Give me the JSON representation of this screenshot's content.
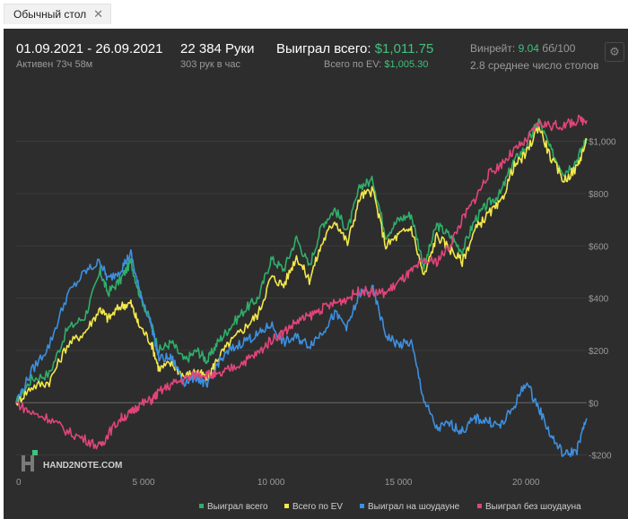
{
  "tab": {
    "label": "Обычный стол",
    "close": "✕"
  },
  "header": {
    "date_range": "01.09.2021 - 26.09.2021",
    "active": "Активен 73ч 58м",
    "hands": "22 384 Руки",
    "hands_per_hour": "303 рук в час",
    "won_label": "Выиграл всего:",
    "won_value": "$1,011.75",
    "ev_label": "Всего по EV:",
    "ev_value": "$1,005.30",
    "winrate_label": "Винрейт:",
    "winrate_value": "9.04",
    "winrate_unit": "бб/100",
    "tables": "2.8 среднее число столов"
  },
  "watermark": "HAND2NOTE.COM",
  "colors": {
    "background": "#2d2d2d",
    "won": "#2fae6a",
    "ev": "#f2e84a",
    "showdown": "#3d8fe0",
    "non_showdown": "#e0457a",
    "positive_value": "#3fc27c"
  },
  "chart_data": {
    "type": "line",
    "xlim": [
      0,
      22384
    ],
    "ylim": [
      -270,
      1170
    ],
    "x_ticks": [
      0,
      5000,
      10000,
      15000,
      20000
    ],
    "x_tick_labels": [
      "0",
      "5 000",
      "10 000",
      "15 000",
      "20 000"
    ],
    "y_ticks": [
      -200,
      0,
      200,
      400,
      600,
      800,
      1000
    ],
    "y_tick_labels": [
      "-$200",
      "$0",
      "$200",
      "$400",
      "$600",
      "$800",
      "$1,000"
    ],
    "grid": true,
    "legend_position": "bottom",
    "series": [
      {
        "name": "Выиграл всего",
        "color": "#2fae6a",
        "x": [
          0,
          600,
          1300,
          2000,
          2700,
          3300,
          3600,
          4100,
          4500,
          4800,
          5300,
          5600,
          6100,
          6600,
          7100,
          7500,
          7900,
          8400,
          9000,
          9500,
          10000,
          10500,
          11000,
          11500,
          12000,
          12500,
          13000,
          13500,
          14000,
          14500,
          15000,
          15500,
          16000,
          16500,
          17000,
          17500,
          18000,
          18500,
          19000,
          19500,
          20000,
          20500,
          21000,
          21500,
          22000,
          22384
        ],
        "y": [
          0,
          90,
          110,
          280,
          330,
          500,
          420,
          470,
          540,
          430,
          300,
          200,
          230,
          160,
          200,
          160,
          230,
          290,
          360,
          400,
          550,
          510,
          630,
          520,
          680,
          740,
          660,
          830,
          850,
          640,
          700,
          720,
          520,
          680,
          640,
          580,
          700,
          760,
          800,
          920,
          980,
          1080,
          960,
          880,
          930,
          1010
        ]
      },
      {
        "name": "Всего по EV",
        "color": "#f2e84a",
        "x": [
          0,
          600,
          1300,
          2000,
          2700,
          3300,
          3600,
          4100,
          4500,
          4800,
          5300,
          5600,
          6100,
          6600,
          7100,
          7500,
          7900,
          8400,
          9000,
          9500,
          10000,
          10500,
          11000,
          11500,
          12000,
          12500,
          13000,
          13500,
          14000,
          14500,
          15000,
          15500,
          16000,
          16500,
          17000,
          17500,
          18000,
          18500,
          19000,
          19500,
          20000,
          20500,
          21000,
          21500,
          22000,
          22384
        ],
        "y": [
          0,
          60,
          80,
          220,
          270,
          360,
          320,
          370,
          380,
          300,
          230,
          130,
          150,
          100,
          120,
          90,
          170,
          230,
          290,
          340,
          480,
          450,
          560,
          470,
          610,
          700,
          610,
          790,
          810,
          600,
          640,
          670,
          480,
          640,
          590,
          540,
          660,
          720,
          760,
          900,
          950,
          1060,
          930,
          850,
          900,
          1005
        ]
      },
      {
        "name": "Выиграл на шоудауне",
        "color": "#3d8fe0",
        "x": [
          0,
          600,
          1300,
          2000,
          2700,
          3300,
          3600,
          4100,
          4500,
          4800,
          5300,
          5600,
          6100,
          6600,
          7100,
          7500,
          7900,
          8400,
          9000,
          9500,
          10000,
          10500,
          11000,
          11500,
          12000,
          12500,
          13000,
          13500,
          14000,
          14500,
          15000,
          15500,
          16000,
          16500,
          17000,
          17500,
          18000,
          18500,
          19000,
          19500,
          20000,
          20500,
          21000,
          21500,
          22000,
          22384
        ],
        "y": [
          0,
          120,
          220,
          410,
          500,
          540,
          470,
          510,
          570,
          440,
          300,
          170,
          170,
          80,
          100,
          60,
          150,
          200,
          240,
          260,
          300,
          230,
          250,
          220,
          270,
          340,
          290,
          420,
          430,
          260,
          220,
          230,
          10,
          -100,
          -80,
          -110,
          -60,
          -70,
          -90,
          -20,
          80,
          -20,
          -130,
          -200,
          -180,
          -60
        ]
      },
      {
        "name": "Выиграл без шоудауна",
        "color": "#e0457a",
        "x": [
          0,
          600,
          1300,
          2000,
          2700,
          3300,
          3600,
          4100,
          4500,
          4800,
          5300,
          5600,
          6100,
          6600,
          7100,
          7500,
          7900,
          8400,
          9000,
          9500,
          10000,
          10500,
          11000,
          11500,
          12000,
          12500,
          13000,
          13500,
          14000,
          14500,
          15000,
          15500,
          16000,
          16500,
          17000,
          17500,
          18000,
          18500,
          19000,
          19500,
          20000,
          20500,
          21000,
          21500,
          22000,
          22384
        ],
        "y": [
          0,
          -40,
          -60,
          -110,
          -140,
          -170,
          -120,
          -60,
          -40,
          -10,
          10,
          40,
          70,
          90,
          110,
          110,
          100,
          130,
          160,
          190,
          240,
          270,
          310,
          330,
          360,
          380,
          400,
          430,
          420,
          420,
          460,
          500,
          540,
          540,
          600,
          700,
          780,
          870,
          910,
          960,
          1000,
          1070,
          1060,
          1060,
          1080,
          1080
        ]
      }
    ]
  }
}
